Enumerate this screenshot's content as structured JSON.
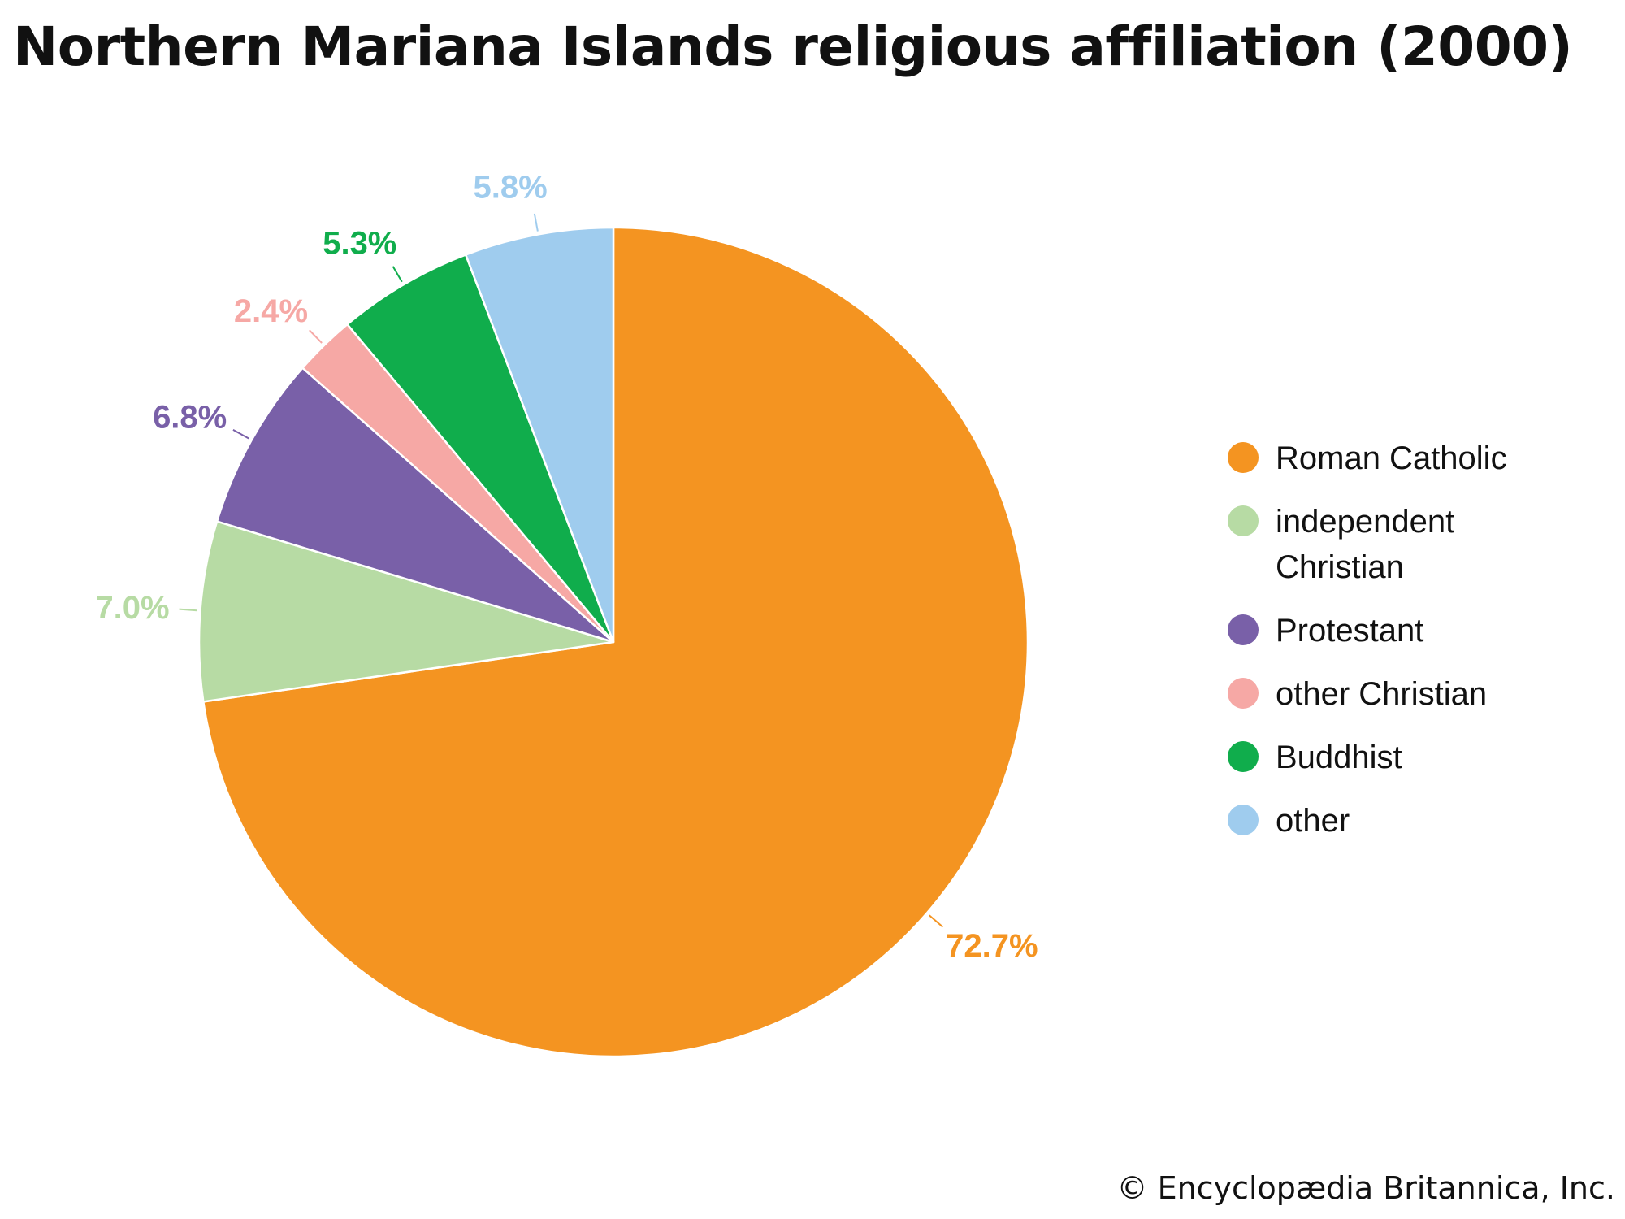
{
  "chart_data": {
    "type": "pie",
    "title": "Northern Mariana Islands religious affiliation (2000)",
    "slices": [
      {
        "name": "Roman Catholic",
        "value": 72.7,
        "label": "72.7%",
        "color": "#f49421"
      },
      {
        "name": "independent Christian",
        "value": 7.0,
        "label": "7.0%",
        "color": "#b7dba4"
      },
      {
        "name": "Protestant",
        "value": 6.8,
        "label": "6.8%",
        "color": "#7960a8"
      },
      {
        "name": "other Christian",
        "value": 2.4,
        "label": "2.4%",
        "color": "#f6a8a5"
      },
      {
        "name": "Buddhist",
        "value": 5.3,
        "label": "5.3%",
        "color": "#10ad4c"
      },
      {
        "name": "other",
        "value": 5.8,
        "label": "5.8%",
        "color": "#9fccee"
      }
    ],
    "legend": {
      "placement": "right",
      "entries": [
        {
          "lines": [
            "Roman Catholic"
          ],
          "color": "#f49421"
        },
        {
          "lines": [
            "independent",
            "Christian"
          ],
          "color": "#b7dba4"
        },
        {
          "lines": [
            "Protestant"
          ],
          "color": "#7960a8"
        },
        {
          "lines": [
            "other Christian"
          ],
          "color": "#f6a8a5"
        },
        {
          "lines": [
            "Buddhist"
          ],
          "color": "#10ad4c"
        },
        {
          "lines": [
            "other"
          ],
          "color": "#9fccee"
        }
      ]
    },
    "start_angle": "12 o'clock",
    "direction": "clockwise"
  },
  "footer": {
    "credit": "© Encyclopædia Britannica, Inc."
  }
}
